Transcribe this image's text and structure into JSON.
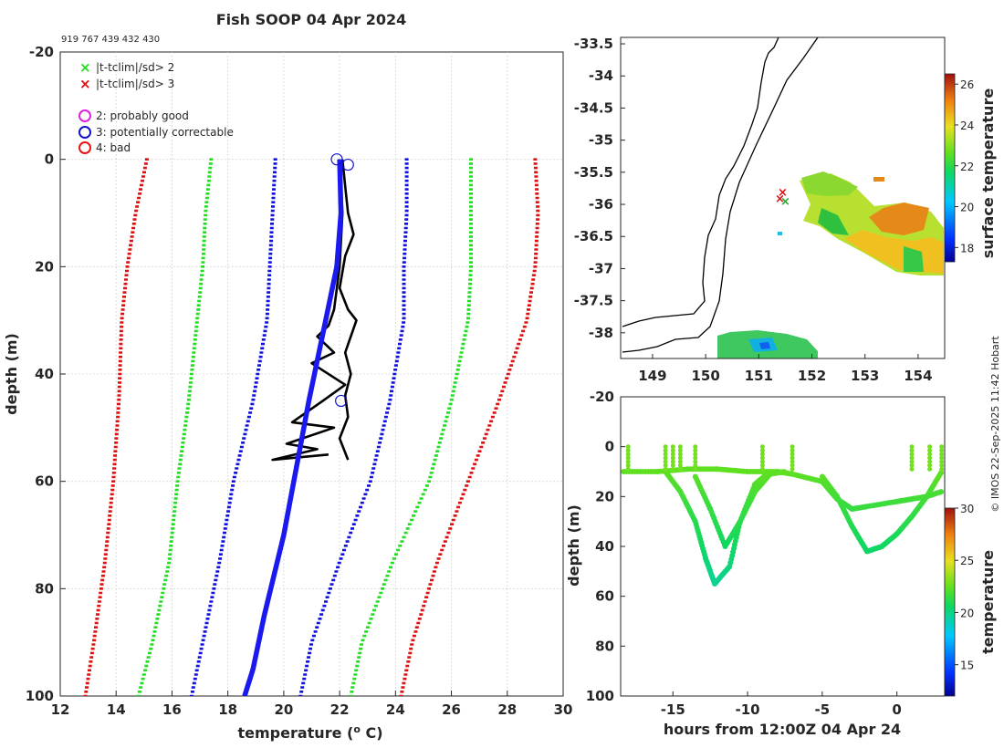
{
  "title": "Fish SOOP 04 Apr 2024",
  "id_line": "919 767 439 432 430",
  "credit": "© IMOS 22-Sep-2025 11:42 Hobart",
  "colors": {
    "climate_sd2": "#22dd22",
    "climate_sd3": "#dd1111",
    "climate_sd1": "#1111dd",
    "obs_profile": "#000000",
    "mean_profile": "#1a1aee",
    "flag_probably_good": "#dd22dd",
    "flag_potentially_correctable": "#1111cc",
    "flag_bad": "#ee1111"
  },
  "legend": {
    "sd2": "|t-tclim|/sd> 2",
    "sd3": "|t-tclim|/sd> 3",
    "flag2": "2: probably good",
    "flag3": "3: potentially correctable",
    "flag4": "4: bad"
  },
  "chart_data": [
    {
      "type": "line",
      "name": "profile",
      "xlabel": "temperature (o C)",
      "ylabel": "depth (m)",
      "xlim": [
        12,
        30
      ],
      "ylim": [
        -20,
        100
      ],
      "xticks": [
        12,
        14,
        16,
        18,
        20,
        22,
        24,
        26,
        28,
        30
      ],
      "yticks": [
        -20,
        0,
        20,
        40,
        60,
        80,
        100
      ],
      "grid": true,
      "climatology": [
        {
          "name": "-3sd",
          "color": "red",
          "x": [
            15.1,
            14.7,
            14.4,
            14.2,
            14.1,
            13.9,
            13.6,
            13.2,
            12.9
          ],
          "depth": [
            0,
            10,
            20,
            30,
            45,
            60,
            75,
            90,
            100
          ]
        },
        {
          "name": "-2sd",
          "color": "green",
          "x": [
            17.4,
            17.2,
            17.1,
            16.9,
            16.6,
            16.2,
            15.9,
            15.3,
            14.8
          ],
          "depth": [
            0,
            10,
            20,
            30,
            45,
            60,
            75,
            90,
            100
          ]
        },
        {
          "name": "-1sd",
          "color": "blue",
          "x": [
            19.7,
            19.6,
            19.5,
            19.4,
            18.9,
            18.2,
            17.7,
            17.1,
            16.7
          ],
          "depth": [
            0,
            10,
            20,
            30,
            45,
            60,
            75,
            90,
            100
          ]
        },
        {
          "name": "+1sd",
          "color": "blue",
          "x": [
            24.4,
            24.4,
            24.3,
            24.3,
            23.8,
            23.1,
            22.0,
            21.0,
            20.6
          ],
          "depth": [
            0,
            10,
            20,
            30,
            45,
            60,
            75,
            90,
            100
          ]
        },
        {
          "name": "+2sd",
          "color": "green",
          "x": [
            26.7,
            26.7,
            26.7,
            26.6,
            26.0,
            25.2,
            23.9,
            22.8,
            22.4
          ],
          "depth": [
            0,
            10,
            20,
            30,
            45,
            60,
            75,
            90,
            100
          ]
        },
        {
          "name": "+3sd",
          "color": "red",
          "x": [
            29.0,
            29.1,
            29.0,
            28.7,
            27.7,
            26.6,
            25.5,
            24.6,
            24.2
          ],
          "depth": [
            0,
            10,
            20,
            30,
            45,
            60,
            75,
            90,
            100
          ]
        }
      ],
      "mean_profile": {
        "x": [
          22.0,
          22.05,
          21.9,
          21.5,
          20.9,
          20.0,
          19.3,
          18.9,
          18.6
        ],
        "depth": [
          0,
          10,
          20,
          30,
          45,
          70,
          85,
          95,
          100
        ]
      },
      "observed": [
        {
          "x": [
            22.1,
            22.2,
            22.3,
            22.5,
            22.2,
            22.0,
            22.3,
            22.6,
            22.2,
            22.4,
            22.2,
            22.3,
            22.0,
            22.3
          ],
          "depth": [
            0,
            5,
            10,
            14,
            18,
            24,
            28,
            30,
            36,
            40,
            44,
            48,
            52,
            56
          ]
        },
        {
          "x": [
            22.0,
            22.1,
            22.0,
            21.8,
            21.6,
            21.2,
            21.8,
            21.0,
            22.2,
            21.4,
            20.3,
            21.8,
            20.1,
            21.2,
            19.6,
            21.6
          ],
          "depth": [
            0,
            10,
            20,
            28,
            31,
            33,
            36,
            38,
            42,
            45,
            49,
            50,
            53,
            54,
            56,
            55
          ]
        }
      ],
      "flag_markers": [
        {
          "flag": 3,
          "x": 21.9,
          "depth": 0
        },
        {
          "flag": 3,
          "x": 22.3,
          "depth": 1
        },
        {
          "flag": 3,
          "x": 22.05,
          "depth": 45
        }
      ]
    },
    {
      "type": "heatmap",
      "name": "sst_map",
      "colorbar_label": "surface temperature",
      "xlim": [
        148.4,
        154.5
      ],
      "ylim": [
        -38.4,
        -33.4
      ],
      "xticks": [
        149,
        150,
        151,
        152,
        153,
        154
      ],
      "yticks": [
        -33.5,
        -34,
        -34.5,
        -35,
        -35.5,
        -36,
        -36.5,
        -37,
        -37.5,
        -38
      ],
      "colorbar_ticks": [
        18,
        20,
        22,
        24,
        26
      ],
      "colorbar_range": [
        17.3,
        26.5
      ],
      "track": [
        {
          "lon": 151.45,
          "lat": -35.85
        },
        {
          "lon": 151.55,
          "lat": -35.95
        },
        {
          "lon": 151.5,
          "lat": -36.05
        }
      ]
    },
    {
      "type": "scatter",
      "name": "depth_time",
      "xlabel": "hours from 12:00Z 04 Apr 24",
      "ylabel": "depth (m)",
      "colorbar_label": "temperature",
      "xlim": [
        -18.5,
        3.2
      ],
      "ylim": [
        -20,
        100
      ],
      "xticks": [
        -15,
        -10,
        -5,
        0
      ],
      "yticks": [
        -20,
        0,
        20,
        40,
        60,
        80,
        100
      ],
      "colorbar_ticks": [
        15,
        20,
        25,
        30
      ],
      "colorbar_range": [
        12,
        30
      ],
      "series": [
        {
          "name": "shallow",
          "hours": [
            -18.3,
            -16,
            -14,
            -12,
            -10,
            -8,
            -7,
            -5,
            -4,
            -3,
            -2,
            0,
            1,
            2,
            3
          ],
          "depth": [
            10,
            10,
            9,
            9,
            10,
            10,
            11,
            14,
            21,
            25,
            24,
            22,
            21,
            20,
            18
          ]
        },
        {
          "name": "dive1",
          "hours": [
            -15.5,
            -14.5,
            -13.5,
            -12.8,
            -12.2,
            -11.2,
            -10.5,
            -9.5,
            -8.5
          ],
          "depth": [
            10,
            18,
            30,
            45,
            55,
            48,
            30,
            15,
            10
          ]
        },
        {
          "name": "dive2",
          "hours": [
            -13.5,
            -12.5,
            -11.5,
            -10.5,
            -9.5,
            -8.5,
            -7.5
          ],
          "depth": [
            12,
            25,
            40,
            30,
            18,
            11,
            10
          ]
        },
        {
          "name": "dive3",
          "hours": [
            -5,
            -4,
            -3,
            -2,
            -1,
            0,
            1,
            2,
            3
          ],
          "depth": [
            12,
            20,
            32,
            42,
            40,
            35,
            28,
            20,
            10
          ]
        }
      ]
    }
  ]
}
